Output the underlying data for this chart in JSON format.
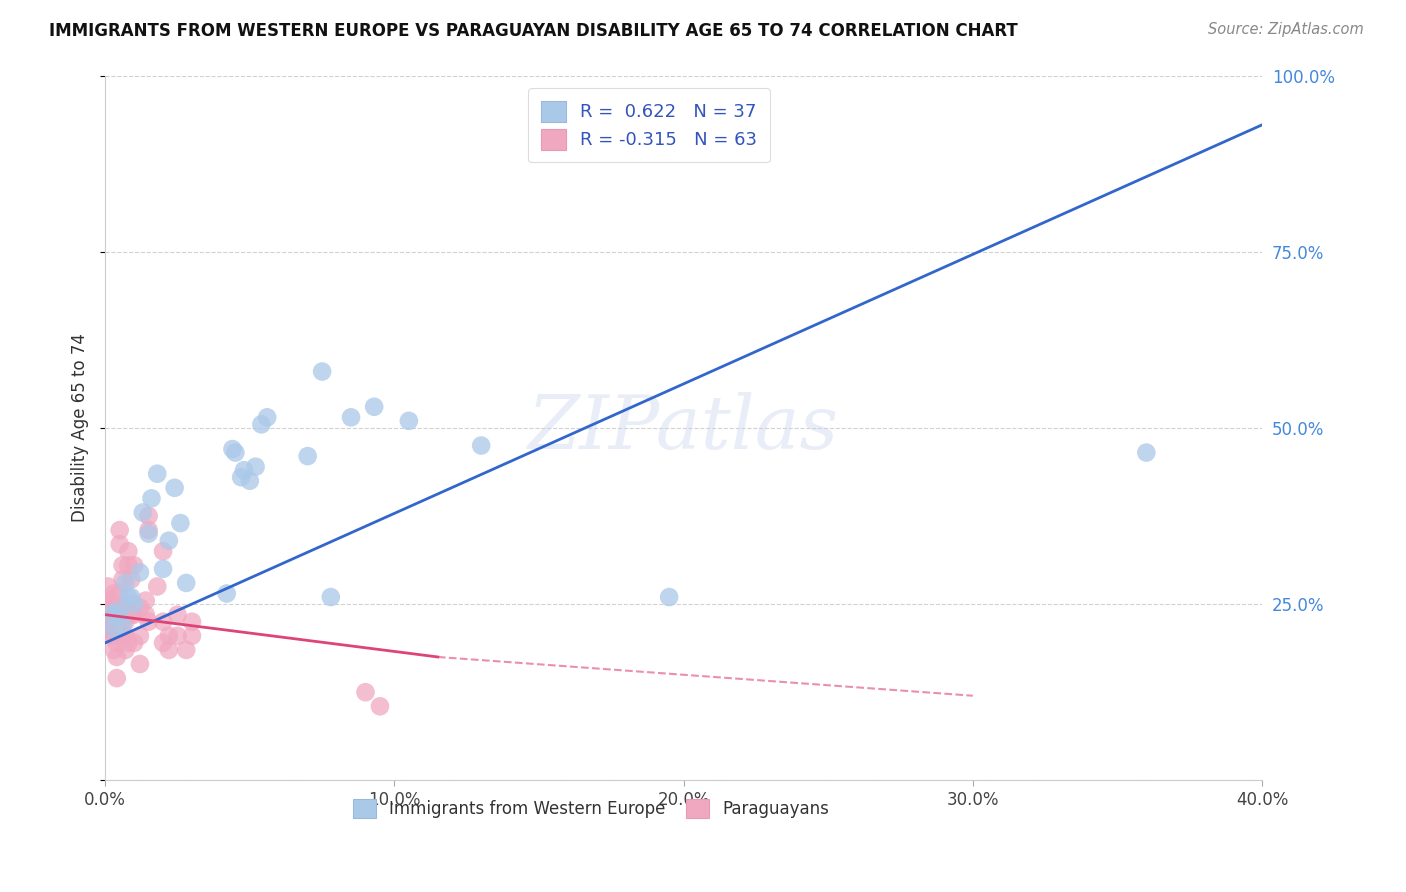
{
  "title": "IMMIGRANTS FROM WESTERN EUROPE VS PARAGUAYAN DISABILITY AGE 65 TO 74 CORRELATION CHART",
  "source": "Source: ZipAtlas.com",
  "ylabel": "Disability Age 65 to 74",
  "xlim": [
    0,
    0.4
  ],
  "ylim": [
    0,
    1.0
  ],
  "blue_R": 0.622,
  "blue_N": 37,
  "pink_R": -0.315,
  "pink_N": 63,
  "legend_label_blue": "Immigrants from Western Europe",
  "legend_label_pink": "Paraguayans",
  "blue_color": "#aac8e8",
  "pink_color": "#f0a8c0",
  "blue_line_color": "#3366cc",
  "pink_line_color": "#dd4477",
  "blue_line": [
    0.0,
    0.195,
    0.4,
    0.93
  ],
  "pink_line_solid": [
    0.0,
    0.235,
    0.115,
    0.175
  ],
  "pink_line_dash": [
    0.115,
    0.175,
    0.3,
    0.12
  ],
  "blue_dots": [
    [
      0.002,
      0.235
    ],
    [
      0.003,
      0.215
    ],
    [
      0.004,
      0.24
    ],
    [
      0.005,
      0.235
    ],
    [
      0.006,
      0.22
    ],
    [
      0.007,
      0.28
    ],
    [
      0.008,
      0.26
    ],
    [
      0.009,
      0.26
    ],
    [
      0.01,
      0.25
    ],
    [
      0.012,
      0.295
    ],
    [
      0.013,
      0.38
    ],
    [
      0.015,
      0.35
    ],
    [
      0.016,
      0.4
    ],
    [
      0.018,
      0.435
    ],
    [
      0.02,
      0.3
    ],
    [
      0.022,
      0.34
    ],
    [
      0.024,
      0.415
    ],
    [
      0.026,
      0.365
    ],
    [
      0.028,
      0.28
    ],
    [
      0.042,
      0.265
    ],
    [
      0.044,
      0.47
    ],
    [
      0.045,
      0.465
    ],
    [
      0.047,
      0.43
    ],
    [
      0.048,
      0.44
    ],
    [
      0.05,
      0.425
    ],
    [
      0.052,
      0.445
    ],
    [
      0.054,
      0.505
    ],
    [
      0.056,
      0.515
    ],
    [
      0.07,
      0.46
    ],
    [
      0.075,
      0.58
    ],
    [
      0.078,
      0.26
    ],
    [
      0.085,
      0.515
    ],
    [
      0.093,
      0.53
    ],
    [
      0.105,
      0.51
    ],
    [
      0.13,
      0.475
    ],
    [
      0.195,
      0.26
    ],
    [
      0.36,
      0.465
    ]
  ],
  "pink_dots": [
    [
      0.0,
      0.225
    ],
    [
      0.0,
      0.245
    ],
    [
      0.001,
      0.235
    ],
    [
      0.001,
      0.225
    ],
    [
      0.001,
      0.255
    ],
    [
      0.001,
      0.275
    ],
    [
      0.001,
      0.215
    ],
    [
      0.002,
      0.245
    ],
    [
      0.002,
      0.205
    ],
    [
      0.002,
      0.225
    ],
    [
      0.002,
      0.255
    ],
    [
      0.002,
      0.215
    ],
    [
      0.003,
      0.235
    ],
    [
      0.003,
      0.265
    ],
    [
      0.003,
      0.225
    ],
    [
      0.003,
      0.205
    ],
    [
      0.003,
      0.185
    ],
    [
      0.004,
      0.245
    ],
    [
      0.004,
      0.225
    ],
    [
      0.004,
      0.195
    ],
    [
      0.004,
      0.175
    ],
    [
      0.004,
      0.145
    ],
    [
      0.005,
      0.265
    ],
    [
      0.005,
      0.225
    ],
    [
      0.005,
      0.205
    ],
    [
      0.005,
      0.335
    ],
    [
      0.005,
      0.355
    ],
    [
      0.006,
      0.285
    ],
    [
      0.006,
      0.245
    ],
    [
      0.006,
      0.225
    ],
    [
      0.006,
      0.305
    ],
    [
      0.007,
      0.205
    ],
    [
      0.007,
      0.225
    ],
    [
      0.007,
      0.185
    ],
    [
      0.008,
      0.305
    ],
    [
      0.008,
      0.325
    ],
    [
      0.008,
      0.195
    ],
    [
      0.009,
      0.235
    ],
    [
      0.009,
      0.285
    ],
    [
      0.01,
      0.195
    ],
    [
      0.01,
      0.235
    ],
    [
      0.01,
      0.305
    ],
    [
      0.012,
      0.245
    ],
    [
      0.012,
      0.205
    ],
    [
      0.012,
      0.165
    ],
    [
      0.014,
      0.255
    ],
    [
      0.014,
      0.235
    ],
    [
      0.015,
      0.225
    ],
    [
      0.015,
      0.355
    ],
    [
      0.015,
      0.375
    ],
    [
      0.018,
      0.275
    ],
    [
      0.02,
      0.195
    ],
    [
      0.02,
      0.225
    ],
    [
      0.02,
      0.325
    ],
    [
      0.022,
      0.205
    ],
    [
      0.022,
      0.185
    ],
    [
      0.025,
      0.205
    ],
    [
      0.025,
      0.235
    ],
    [
      0.028,
      0.185
    ],
    [
      0.03,
      0.205
    ],
    [
      0.03,
      0.225
    ],
    [
      0.09,
      0.125
    ],
    [
      0.095,
      0.105
    ]
  ],
  "watermark": "ZIPatlas"
}
